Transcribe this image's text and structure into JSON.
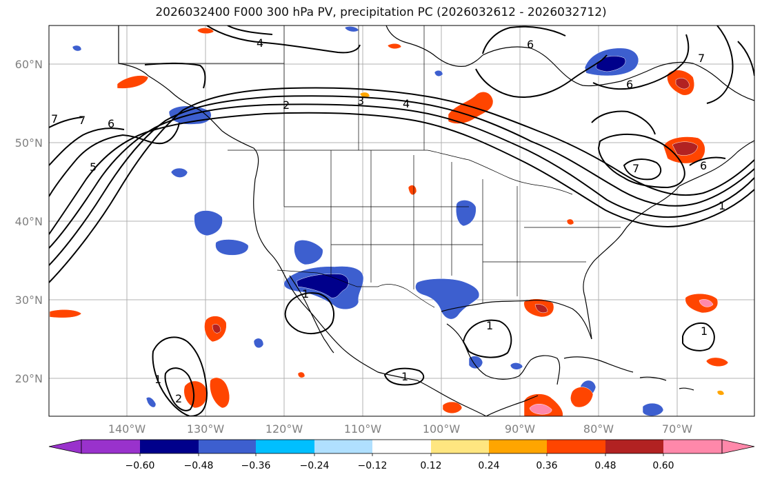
{
  "title": "2026032400 F000 300 hPa PV, precipitation PC (2026032612 - 2026032712)",
  "lat_labels": [
    "60°N",
    "50°N",
    "40°N",
    "30°N",
    "20°N"
  ],
  "lon_labels": [
    "140°W",
    "130°W",
    "120°W",
    "110°W",
    "100°W",
    "90°W",
    "80°W",
    "70°W"
  ],
  "contour_labels": [
    "4",
    "6",
    "7",
    "6",
    "7",
    "7",
    "6",
    "5",
    "2",
    "3",
    "4",
    "7",
    "6",
    "1",
    "1",
    "1",
    "1",
    "1",
    "1",
    "2"
  ],
  "colorbar": {
    "ticks": [
      "−0.60",
      "−0.48",
      "−0.36",
      "−0.24",
      "−0.12",
      "0.12",
      "0.24",
      "0.36",
      "0.48",
      "0.60"
    ],
    "colors": [
      "#9932cc",
      "#00008b",
      "#3d5fcf",
      "#00bfff",
      "#b0e0ff",
      "#ffffff",
      "#ffe680",
      "#ffa500",
      "#ff4500",
      "#b22222",
      "#ff88aa"
    ]
  },
  "colors": {
    "contour": "#000000",
    "grid": "#b0b0b0",
    "axis_label": "#808080"
  }
}
